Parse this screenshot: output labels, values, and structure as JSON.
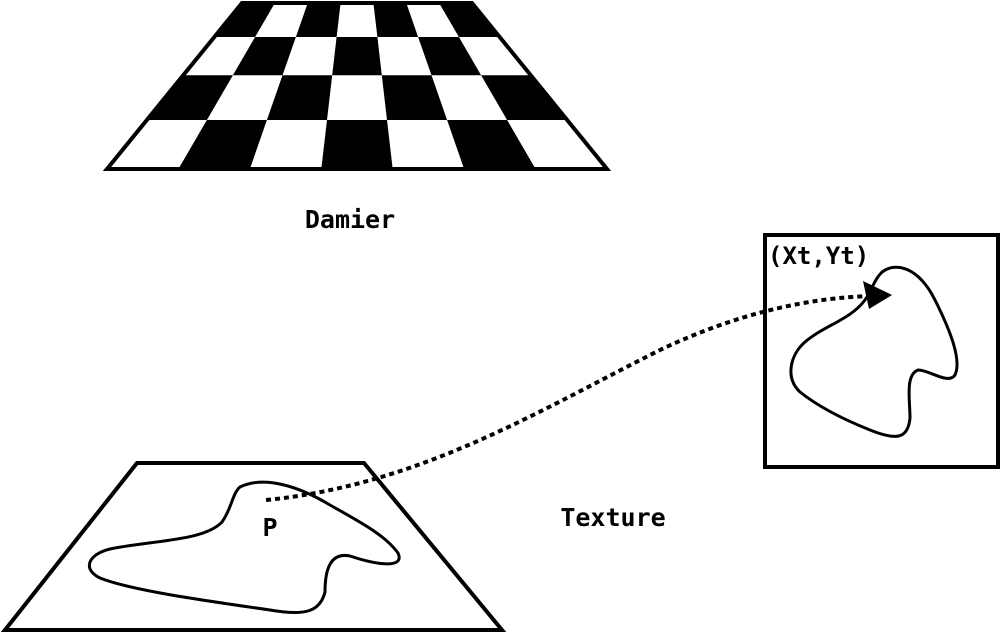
{
  "labels": {
    "checkerboard": "Damier",
    "texture": "Texture",
    "point": "P",
    "coords": "(Xt,Yt)"
  },
  "colors": {
    "ink": "#000000",
    "paper": "#ffffff"
  }
}
